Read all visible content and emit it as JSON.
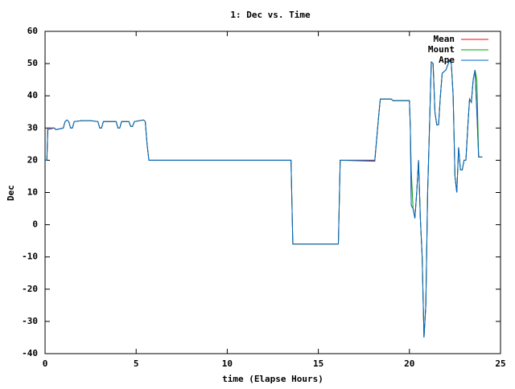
{
  "chart_data": {
    "type": "line",
    "title": "1: Dec vs. Time",
    "x_label": "time (Elapse Hours)",
    "y_label": "Dec",
    "x": [
      0,
      0.1,
      0.15,
      0.5,
      0.6,
      1.0,
      1.1,
      1.2,
      1.3,
      1.4,
      1.5,
      1.6,
      2.0,
      2.5,
      2.9,
      3.0,
      3.1,
      3.2,
      3.9,
      4.0,
      4.1,
      4.2,
      4.6,
      4.7,
      4.8,
      4.9,
      5.4,
      5.5,
      5.6,
      5.7,
      13.5,
      13.6,
      16.1,
      16.2,
      18.1,
      18.3,
      18.4,
      19.0,
      19.1,
      20.0,
      20.05,
      20.1,
      20.2,
      20.3,
      20.4,
      20.5,
      20.6,
      20.7,
      20.8,
      20.9,
      21.0,
      21.1,
      21.2,
      21.3,
      21.4,
      21.5,
      21.6,
      21.7,
      21.8,
      22.0,
      22.2,
      22.3,
      22.4,
      22.5,
      22.6,
      22.7,
      22.8,
      22.9,
      23.0,
      23.1,
      23.2,
      23.3,
      23.4,
      23.5,
      23.6,
      23.7,
      23.8,
      24.0
    ],
    "series": [
      {
        "name": "Mean",
        "color": "#ff0000",
        "values": [
          20,
          20,
          29.5,
          30,
          29.5,
          30,
          32,
          32.5,
          32,
          30,
          30,
          32,
          32.3,
          32.3,
          32,
          30,
          30,
          32,
          32,
          30,
          30,
          32,
          32,
          30.5,
          30.5,
          32,
          32.5,
          32,
          25,
          20,
          20,
          -6,
          -6,
          20,
          19.7,
          33,
          39,
          39,
          38.5,
          38.5,
          30,
          6,
          5,
          2,
          10,
          20,
          2,
          -10,
          -35,
          -25,
          10,
          30,
          50.5,
          50,
          35,
          31,
          31,
          40,
          47,
          48,
          51,
          50,
          40,
          15,
          10,
          24,
          17,
          17,
          20,
          20,
          30,
          39,
          38,
          45,
          48,
          35,
          21,
          21
        ]
      },
      {
        "name": "Mount",
        "color": "#00a000",
        "values": [
          20,
          20,
          30,
          30,
          29.5,
          30,
          32,
          32.5,
          32,
          30,
          30,
          32,
          32.3,
          32.3,
          32,
          30,
          30,
          32,
          32,
          30,
          30,
          32,
          32,
          30.5,
          30.5,
          32,
          32.5,
          32,
          25,
          20,
          20,
          -6,
          -6,
          20,
          20,
          33,
          39,
          39,
          38.5,
          38.5,
          30,
          17,
          5,
          2,
          10,
          20,
          2,
          -10,
          -35,
          -25,
          10,
          30,
          50.5,
          50,
          35,
          31,
          31,
          40,
          47,
          48,
          51,
          50,
          40,
          15,
          10,
          24,
          17,
          17,
          20,
          20,
          30,
          39,
          38,
          45,
          48,
          45,
          21,
          21
        ]
      },
      {
        "name": "Ape",
        "color": "#0066cc",
        "values": [
          20,
          20,
          30,
          30,
          29.5,
          30,
          32,
          32.5,
          32,
          30,
          30,
          32,
          32.3,
          32.3,
          32,
          30,
          30,
          32,
          32,
          30,
          30,
          32,
          32,
          30.5,
          30.5,
          32,
          32.5,
          32,
          25,
          20,
          20,
          -6,
          -6,
          20,
          20,
          33,
          39,
          39,
          38.5,
          38.5,
          30,
          6,
          5,
          2,
          10,
          20,
          2,
          -10,
          -35,
          -25,
          10,
          30,
          50.5,
          50,
          35,
          31,
          31,
          40,
          47,
          48,
          51,
          50,
          40,
          15,
          10,
          24,
          17,
          17,
          20,
          20,
          30,
          39,
          38,
          45,
          48,
          35,
          21,
          21
        ]
      }
    ],
    "xlim": [
      0,
      25
    ],
    "xticks": [
      0,
      5,
      10,
      15,
      20,
      25
    ],
    "ylim": [
      -40,
      60
    ],
    "yticks": [
      -40,
      -30,
      -20,
      -10,
      0,
      10,
      20,
      30,
      40,
      50,
      60
    ],
    "grid": false,
    "legend_position": "top-right"
  }
}
